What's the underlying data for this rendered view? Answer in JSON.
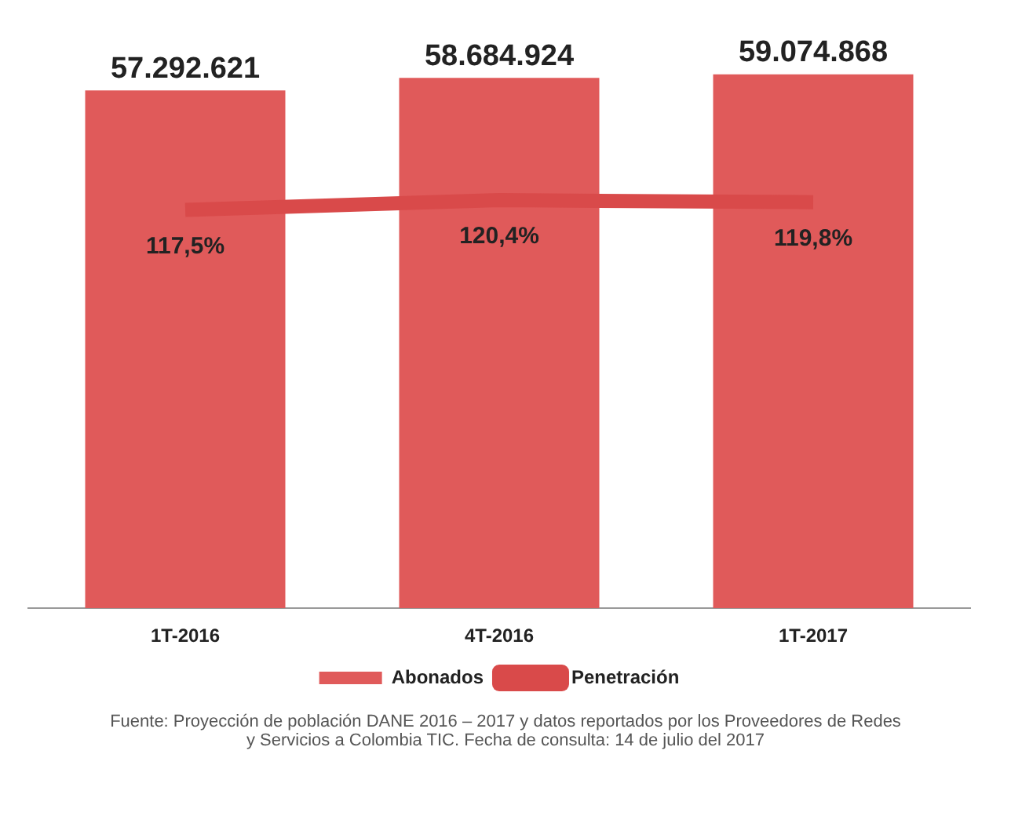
{
  "chart_data": {
    "type": "bar",
    "categories": [
      "1T-2016",
      "4T-2016",
      "1T-2017"
    ],
    "series": [
      {
        "name": "Abonados",
        "type": "bar",
        "color": "#e05a5a",
        "values": [
          57292621,
          58684924,
          59074868
        ],
        "value_labels": [
          "57.292.621",
          "58.684.924",
          "59.074.868"
        ]
      },
      {
        "name": "Penetración",
        "type": "line",
        "axis": "y2",
        "color": "#d94a4a",
        "values": [
          117.5,
          120.4,
          119.8
        ],
        "value_labels": [
          "117,5%",
          "120,4%",
          "119,8%"
        ]
      }
    ],
    "legend": "bottom",
    "annotations": [
      "Fuente: Proyección de población DANE 2016 – 2017 y datos reportados por los Proveedores de Redes y Servicios a Colombia TIC. Fecha de consulta: 14 de julio del 2017"
    ]
  }
}
